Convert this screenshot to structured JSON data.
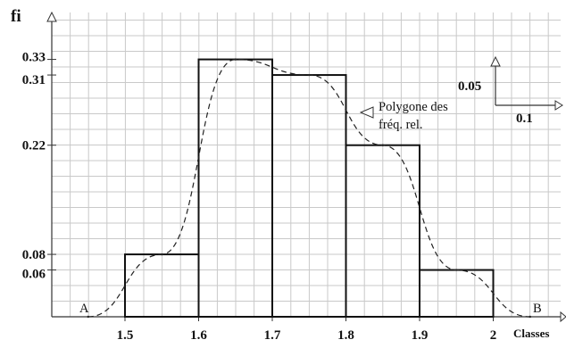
{
  "chart_data": {
    "type": "bar",
    "ylabel": "fi",
    "xlabel": "Classes",
    "grid": true,
    "x_ticks": [
      "1.5",
      "1.6",
      "1.7",
      "1.8",
      "1.9",
      "2"
    ],
    "y_ticks": [
      "0.06",
      "0.08",
      "0.22",
      "0.31",
      "0.33"
    ],
    "xlim": [
      1.4,
      2.1
    ],
    "ylim": [
      0,
      0.35
    ],
    "histogram": [
      {
        "from": 1.5,
        "to": 1.6,
        "value": 0.08
      },
      {
        "from": 1.6,
        "to": 1.7,
        "value": 0.33
      },
      {
        "from": 1.7,
        "to": 1.8,
        "value": 0.31
      },
      {
        "from": 1.8,
        "to": 1.9,
        "value": 0.22
      },
      {
        "from": 1.9,
        "to": 2.0,
        "value": 0.06
      }
    ],
    "polygon": {
      "label_line1": "Polygone des",
      "label_line2": "fréq. rel.",
      "points": [
        {
          "x": 1.45,
          "y": 0
        },
        {
          "x": 1.55,
          "y": 0.08
        },
        {
          "x": 1.65,
          "y": 0.33
        },
        {
          "x": 1.75,
          "y": 0.31
        },
        {
          "x": 1.85,
          "y": 0.22
        },
        {
          "x": 1.95,
          "y": 0.06
        },
        {
          "x": 2.05,
          "y": 0
        }
      ],
      "start_label": "A",
      "end_label": "B"
    },
    "scale_legend": {
      "y_step": "0.05",
      "x_step": "0.1"
    }
  }
}
